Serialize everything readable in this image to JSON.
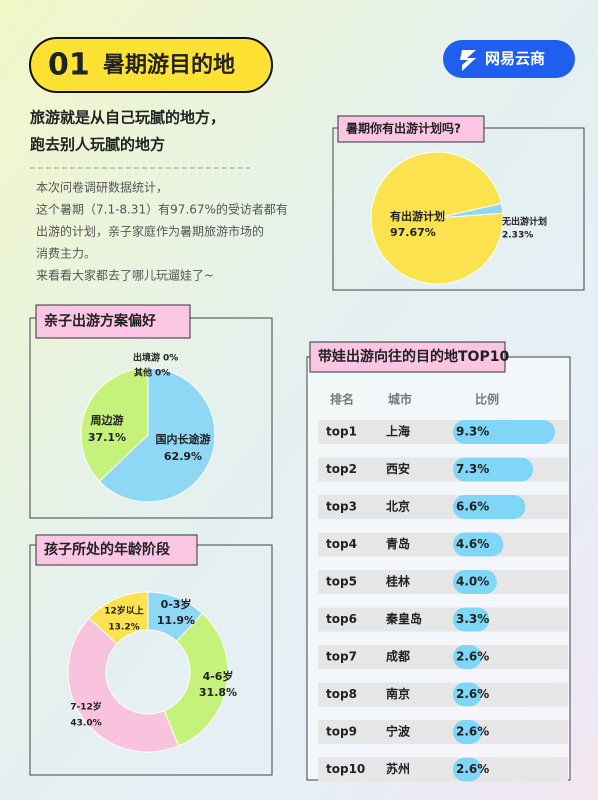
{
  "header": {
    "number": "01",
    "title": "暑期游目的地",
    "brand": "网易云商"
  },
  "intro": {
    "headline": [
      "旅游就是从自己玩腻的地方，",
      "跑去别人玩腻的地方"
    ],
    "paragraphs": [
      "本次问卷调研数据统计，",
      "这个暑期（7.1-8.31）有97.67%的受访者都有",
      "出游的计划，亲子家庭作为暑期旅游市场的",
      "消费主力。",
      "来看看大家都去了哪儿玩遛娃了~"
    ]
  },
  "chart_data": [
    {
      "type": "pie",
      "title": "暑期你有出游计划吗?",
      "categories": [
        "有出游计划",
        "无出游计划"
      ],
      "values": [
        97.67,
        2.33
      ],
      "value_labels": [
        "97.67%",
        "2.33%"
      ],
      "colors": [
        "#fde24f",
        "#8fd8f5"
      ]
    },
    {
      "type": "pie",
      "title": "亲子出游方案偏好",
      "categories": [
        "国内长途游",
        "周边游",
        "出境游",
        "其他"
      ],
      "values": [
        62.9,
        37.1,
        0,
        0
      ],
      "value_labels": [
        "62.9%",
        "37.1%",
        "0%",
        "0%"
      ],
      "colors": [
        "#8fd8f5",
        "#c5f27a",
        "#f9b4d6",
        "#fde24f"
      ]
    },
    {
      "type": "donut",
      "title": "孩子所处的年龄阶段",
      "categories": [
        "0-3岁",
        "4-6岁",
        "7-12岁",
        "12岁以上"
      ],
      "values": [
        11.9,
        31.8,
        43.0,
        13.2
      ],
      "value_labels": [
        "11.9%",
        "31.8%",
        "43.0%",
        "13.2%"
      ],
      "colors": [
        "#8fd8f5",
        "#c5f27a",
        "#f9c3de",
        "#fde24f"
      ]
    },
    {
      "type": "bar",
      "title": "带娃出游向往的目的地TOP10",
      "columns": [
        "排名",
        "城市",
        "比例"
      ],
      "categories": [
        "top1",
        "top2",
        "top3",
        "top4",
        "top5",
        "top6",
        "top7",
        "top8",
        "top9",
        "top10"
      ],
      "cities": [
        "上海",
        "西安",
        "北京",
        "青岛",
        "桂林",
        "秦皇岛",
        "成都",
        "南京",
        "宁波",
        "苏州"
      ],
      "values": [
        9.3,
        7.3,
        6.6,
        4.6,
        4.0,
        3.3,
        2.6,
        2.6,
        2.6,
        2.6
      ],
      "value_labels": [
        "9.3%",
        "7.3%",
        "6.6%",
        "4.6%",
        "4.0%",
        "3.3%",
        "2.6%",
        "2.6%",
        "2.6%",
        "2.6%"
      ],
      "color": "#7fd6f7"
    }
  ]
}
